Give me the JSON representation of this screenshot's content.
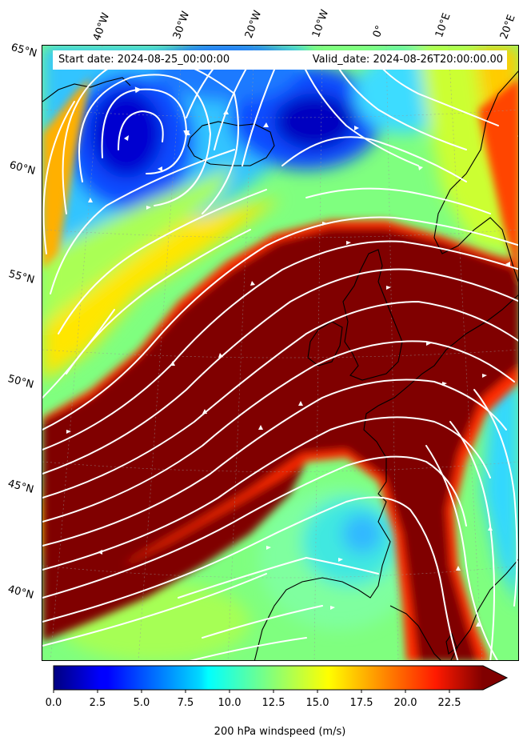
{
  "header": {
    "start_date": "Start date: 2024-08-25_00:00:00",
    "valid_date": "Valid_date: 2024-08-26T20:00:00.00"
  },
  "lon_labels": [
    "40°W",
    "30°W",
    "20°W",
    "10°W",
    "0°",
    "10°E",
    "20°E"
  ],
  "lat_labels": [
    "65°N",
    "60°N",
    "55°N",
    "50°N",
    "45°N",
    "40°N"
  ],
  "colorbar": {
    "title": "200 hPa windspeed (m/s)",
    "ticks": [
      "0.0",
      "2.5",
      "5.0",
      "7.5",
      "10.0",
      "12.5",
      "15.0",
      "17.5",
      "20.0",
      "22.5"
    ],
    "colormap": "jet",
    "extend": "max"
  },
  "colors": {
    "streamline": "#ffffff",
    "coastline": "#000000",
    "jet_core": "#800000"
  }
}
